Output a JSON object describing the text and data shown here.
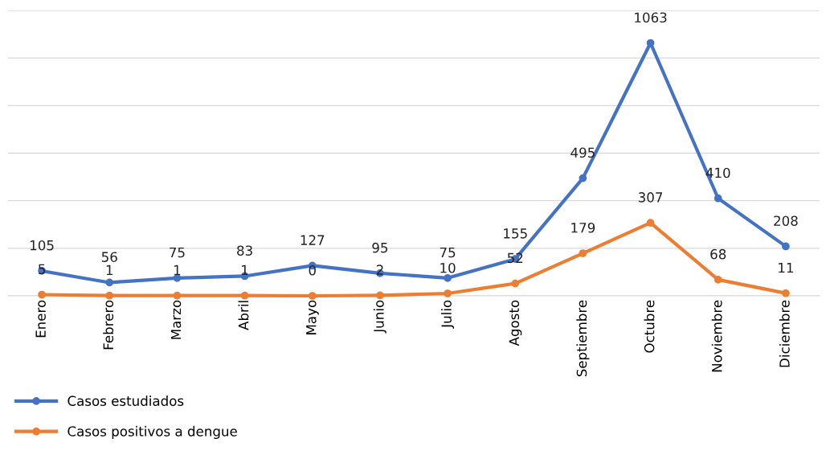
{
  "chart_data": {
    "type": "line",
    "categories": [
      "Enero",
      "Febrero",
      "Marzo",
      "Abril",
      "Mayo",
      "Junio",
      "Julio",
      "Agosto",
      "Septiembre",
      "Octubre",
      "Noviembre",
      "Diciembre"
    ],
    "series": [
      {
        "name": "Casos estudiados",
        "color": "#4472c4",
        "values": [
          105,
          56,
          75,
          83,
          127,
          95,
          75,
          155,
          495,
          1063,
          410,
          208
        ]
      },
      {
        "name": "Casos positivos a dengue",
        "color": "#ed7d31",
        "values": [
          5,
          1,
          1,
          1,
          0,
          2,
          10,
          52,
          179,
          307,
          68,
          11
        ]
      }
    ],
    "ylim": [
      0,
      1200
    ],
    "yticks": [
      {
        "value": 0,
        "label": null
      },
      {
        "value": 200,
        "label": null
      },
      {
        "value": 400,
        "label": null
      },
      {
        "value": 600,
        "label": null
      },
      {
        "value": 800,
        "label": null
      },
      {
        "value": 1000,
        "label": null
      },
      {
        "value": 1200,
        "label": null
      }
    ],
    "tick_labels": "x",
    "grid": "y",
    "legend": "bottom left",
    "marker": "circle",
    "line_style": "solid",
    "data_labels": true
  }
}
